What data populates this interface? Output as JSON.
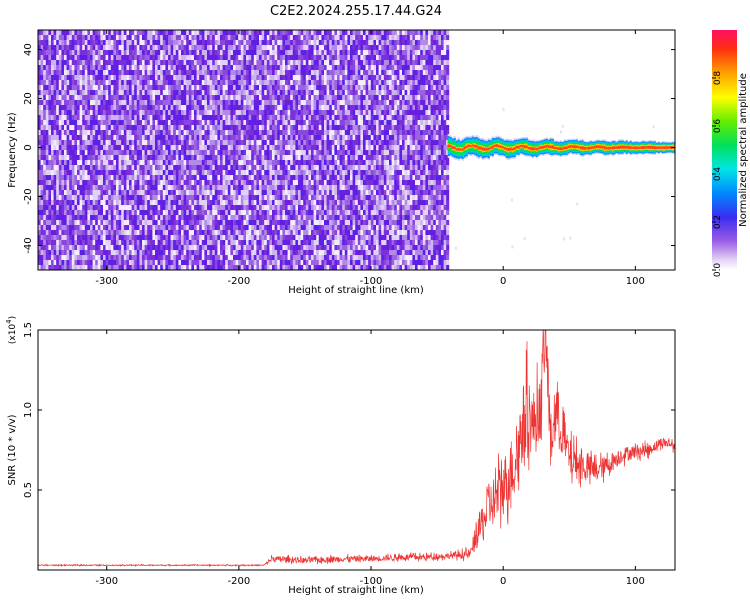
{
  "title": "C2E2.2024.255.17.44.G24",
  "chart_data": [
    {
      "type": "heatmap",
      "xlabel": "Height of straight line (km)",
      "ylabel": "Frequency (Hz)",
      "xlim": [
        -352,
        130
      ],
      "ylim": [
        -50,
        48
      ],
      "x_ticks": [
        -300,
        -200,
        -100,
        0,
        100
      ],
      "y_ticks": [
        -40,
        -20,
        0,
        20,
        40
      ],
      "colorbar": {
        "label": "Normalized spectral amplitude",
        "ticks": [
          0.0,
          0.2,
          0.4,
          0.6,
          0.8
        ],
        "range": [
          0,
          1
        ]
      },
      "regions": [
        {
          "x_range": [
            -352,
            -42
          ],
          "y_range": [
            -50,
            48
          ],
          "amplitude": "noise, ~0.1-0.3"
        },
        {
          "x_range": [
            -42,
            130
          ],
          "y_range": [
            -2,
            2
          ],
          "amplitude": "signal, up to ~1.0 near 0 Hz"
        }
      ]
    },
    {
      "type": "line",
      "xlabel": "Height of straight line (km)",
      "ylabel": "SNR (10 * v/v)",
      "y_multiplier": "(x10^4)",
      "xlim": [
        -352,
        130
      ],
      "ylim": [
        0,
        1.5
      ],
      "x_ticks": [
        -300,
        -200,
        -100,
        0,
        100
      ],
      "y_ticks": [
        0.5,
        1.0,
        1.5
      ],
      "y_tick_labels": [
        "0.5",
        "1.0",
        "1.5"
      ],
      "series": [
        {
          "color": "#ee3333",
          "x": [
            -352,
            -300,
            -250,
            -200,
            -181,
            -175,
            -150,
            -120,
            -100,
            -80,
            -60,
            -40,
            -25,
            -20,
            -10,
            0,
            10,
            18,
            22,
            28,
            32,
            36,
            40,
            45,
            50,
            60,
            70,
            80,
            90,
            100,
            110,
            120,
            130
          ],
          "y": [
            0.03,
            0.03,
            0.03,
            0.03,
            0.03,
            0.07,
            0.06,
            0.07,
            0.07,
            0.08,
            0.08,
            0.09,
            0.1,
            0.22,
            0.4,
            0.52,
            0.7,
            1.05,
            0.9,
            1.0,
            1.5,
            0.8,
            1.0,
            0.85,
            0.7,
            0.65,
            0.62,
            0.66,
            0.72,
            0.74,
            0.75,
            0.8,
            0.78
          ],
          "noise_amplitude": [
            0.005,
            0.005,
            0.005,
            0.005,
            0.005,
            0.03,
            0.03,
            0.03,
            0.03,
            0.03,
            0.03,
            0.03,
            0.05,
            0.15,
            0.25,
            0.3,
            0.35,
            0.4,
            0.35,
            0.35,
            0.3,
            0.3,
            0.3,
            0.25,
            0.2,
            0.15,
            0.12,
            0.1,
            0.08,
            0.07,
            0.06,
            0.05,
            0.05
          ]
        }
      ]
    }
  ]
}
